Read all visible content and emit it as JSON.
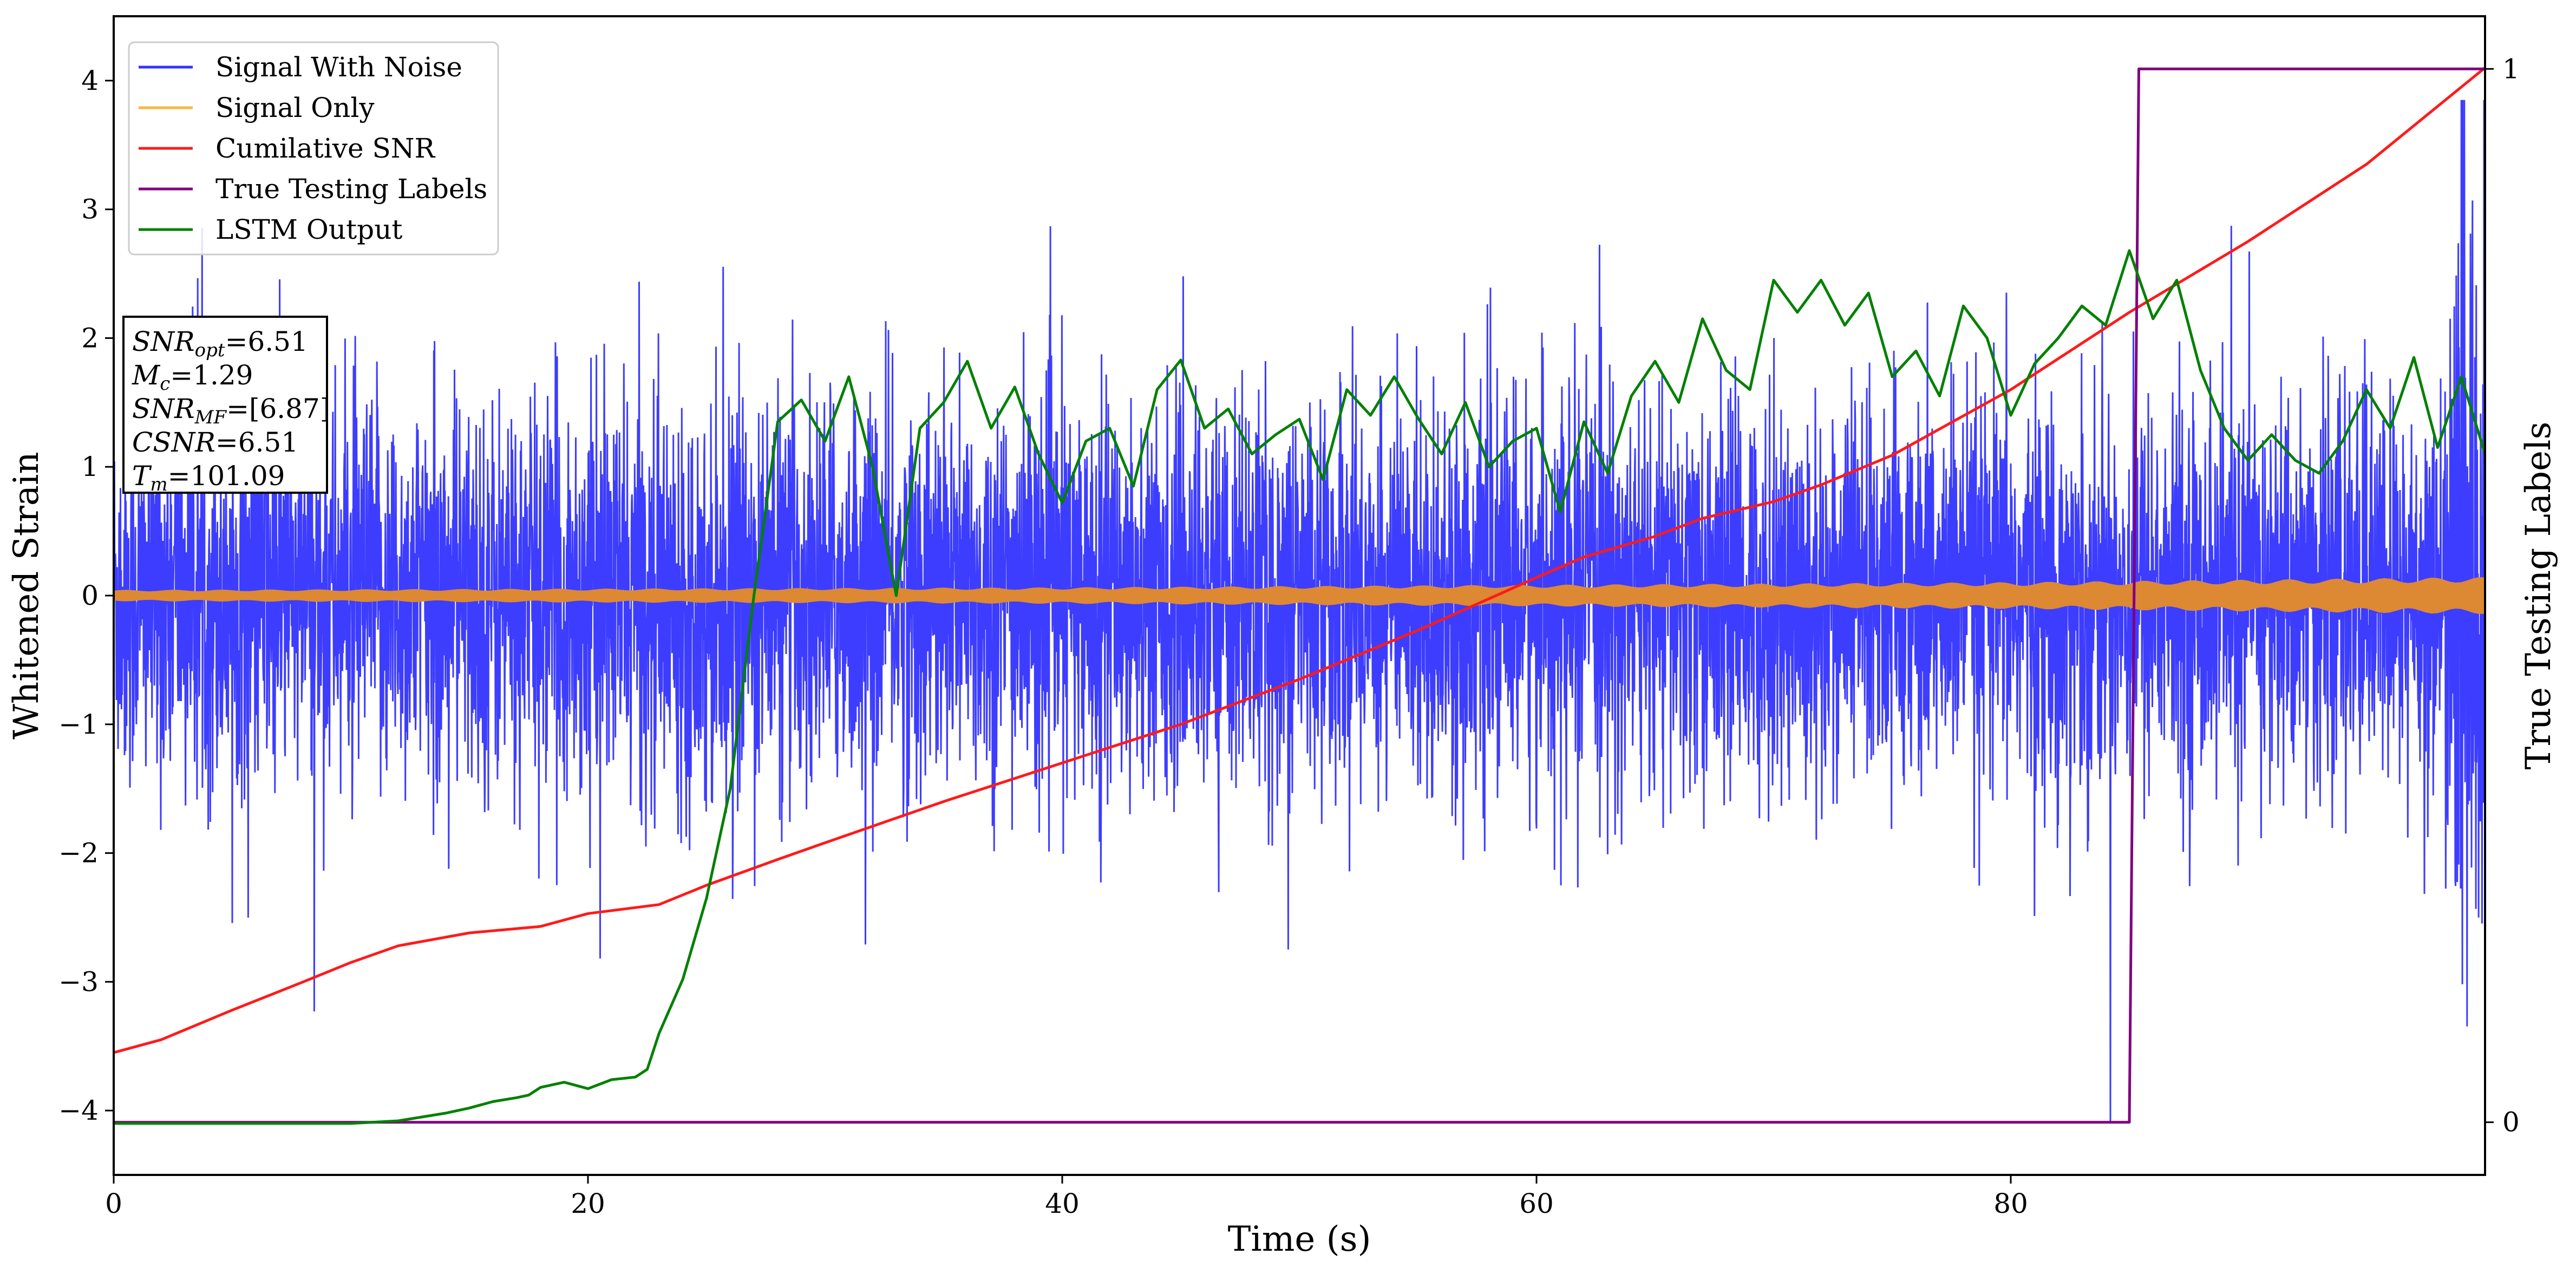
{
  "chart_data": {
    "type": "line",
    "xlabel": "Time (s)",
    "ylabel": "Whitened Strain",
    "y2label": "True Testing Labels",
    "xlim": [
      0,
      100
    ],
    "ylim": [
      -4.5,
      4.5
    ],
    "y2lim": [
      -0.05,
      1.05
    ],
    "x_ticks": [
      0,
      20,
      40,
      60,
      80
    ],
    "y_ticks": [
      -4,
      -3,
      -2,
      -1,
      0,
      1,
      2,
      3,
      4
    ],
    "y2_ticks": [
      0,
      1
    ],
    "grid": false,
    "legend_position": "upper-left",
    "legend": [
      {
        "label": "Signal With Noise",
        "color": "#3333ff"
      },
      {
        "label": "Signal Only",
        "color": "#f5b942"
      },
      {
        "label": "Cumilative SNR",
        "color": "#ff1a1a"
      },
      {
        "label": "True Testing Labels",
        "color": "#800080"
      },
      {
        "label": "LSTM Output",
        "color": "#008000"
      }
    ],
    "info_box": {
      "snr_opt": {
        "sym": "SNR",
        "sub": "opt",
        "value": "=6.51"
      },
      "mc": {
        "sym": "M",
        "sub": "c",
        "value": "=1.29"
      },
      "snr_mf": {
        "sym": "SNR",
        "sub": "MF",
        "value": "=[6.87]"
      },
      "csnr": {
        "sym": "CSNR",
        "sub": "",
        "value": "=6.51"
      },
      "tm": {
        "sym": "T",
        "sub": "m",
        "value": "=101.09"
      }
    },
    "series": [
      {
        "name": "Signal With Noise",
        "color": "#3333ff",
        "axis": "left",
        "noise_std": 0.75,
        "x_range": [
          0,
          100
        ]
      },
      {
        "name": "Signal Only",
        "color": "#dd8833",
        "axis": "left",
        "envelope_x": [
          0,
          20,
          40,
          60,
          80,
          90,
          100
        ],
        "envelope_y": [
          0.04,
          0.05,
          0.06,
          0.08,
          0.1,
          0.12,
          0.14
        ]
      },
      {
        "name": "Cumilative SNR",
        "color": "#ff1a1a",
        "axis": "left",
        "x": [
          0,
          2,
          5,
          8,
          10,
          12,
          15,
          18,
          20,
          23,
          25,
          28,
          30,
          35,
          40,
          45,
          50,
          55,
          60,
          62,
          65,
          67,
          70,
          72,
          75,
          80,
          85,
          90,
          95,
          100
        ],
        "y": [
          -3.55,
          -3.45,
          -3.22,
          -3.0,
          -2.85,
          -2.72,
          -2.62,
          -2.57,
          -2.47,
          -2.4,
          -2.25,
          -2.05,
          -1.92,
          -1.6,
          -1.3,
          -1.0,
          -0.65,
          -0.27,
          0.14,
          0.3,
          0.46,
          0.6,
          0.73,
          0.86,
          1.09,
          1.6,
          2.2,
          2.75,
          3.35,
          4.1
        ]
      },
      {
        "name": "True Testing Labels",
        "color": "#800080",
        "axis": "right",
        "x": [
          0,
          85,
          85.4,
          100
        ],
        "y": [
          0,
          0,
          1,
          1
        ]
      },
      {
        "name": "LSTM Output",
        "color": "#008000",
        "axis": "left",
        "x": [
          0,
          10,
          12,
          13,
          14,
          15,
          16,
          17,
          17.5,
          18,
          19,
          20,
          21,
          22,
          22.5,
          23,
          24,
          25,
          26,
          27,
          28,
          29,
          30,
          31,
          32,
          33,
          34,
          35,
          36,
          37,
          38,
          39,
          40,
          41,
          42,
          43,
          44,
          45,
          46,
          47,
          48,
          49,
          50,
          51,
          52,
          53,
          54,
          55,
          56,
          57,
          58,
          59,
          60,
          61,
          62,
          63,
          64,
          65,
          66,
          67,
          68,
          69,
          70,
          71,
          72,
          73,
          74,
          75,
          76,
          77,
          78,
          79,
          80,
          81,
          82,
          83,
          84,
          85,
          86,
          87,
          88,
          89,
          90,
          91,
          92,
          93,
          94,
          95,
          96,
          97,
          98,
          99,
          100
        ],
        "y": [
          -4.1,
          -4.1,
          -4.08,
          -4.05,
          -4.02,
          -3.98,
          -3.93,
          -3.9,
          -3.88,
          -3.82,
          -3.78,
          -3.83,
          -3.76,
          -3.74,
          -3.68,
          -3.4,
          -2.98,
          -2.35,
          -1.5,
          0.0,
          1.35,
          1.52,
          1.2,
          1.7,
          1.0,
          0.0,
          1.3,
          1.5,
          1.82,
          1.3,
          1.62,
          1.1,
          0.72,
          1.2,
          1.3,
          0.85,
          1.6,
          1.83,
          1.3,
          1.45,
          1.1,
          1.25,
          1.37,
          0.9,
          1.6,
          1.4,
          1.7,
          1.38,
          1.1,
          1.5,
          1.0,
          1.2,
          1.3,
          0.65,
          1.35,
          0.95,
          1.55,
          1.82,
          1.5,
          2.15,
          1.75,
          1.6,
          2.45,
          2.2,
          2.45,
          2.1,
          2.35,
          1.7,
          1.9,
          1.55,
          2.25,
          2.0,
          1.4,
          1.8,
          2.0,
          2.25,
          2.1,
          2.68,
          2.15,
          2.45,
          1.75,
          1.3,
          1.05,
          1.25,
          1.05,
          0.95,
          1.2,
          1.6,
          1.3,
          1.85,
          1.15,
          1.7,
          1.1
        ]
      }
    ]
  }
}
